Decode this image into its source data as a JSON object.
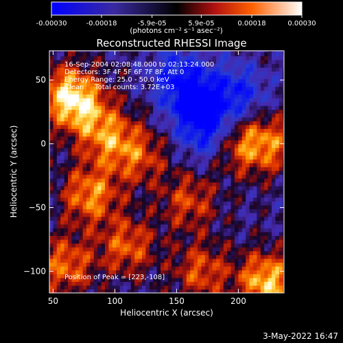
{
  "colorbar": {
    "tick_labels": [
      "-0.00030",
      "-0.00018",
      "-5.9e-05",
      "5.9e-05",
      "0.00018",
      "0.00030"
    ],
    "tick_values": [
      -0.0003,
      -0.00018,
      -5.9e-05,
      5.9e-05,
      0.00018,
      0.0003
    ],
    "range": [
      -0.0003,
      0.0003
    ],
    "unit_label": "(photons cm⁻² s⁻¹ asec⁻²)"
  },
  "chart_data": {
    "type": "heatmap",
    "title": "Reconstructed RHESSI Image",
    "xlabel": "Heliocentric X (arcsec)",
    "ylabel": "Heliocentric Y (arcsec)",
    "xlim": [
      47,
      237
    ],
    "ylim": [
      -117,
      73
    ],
    "x_ticks": [
      50,
      100,
      150,
      200
    ],
    "y_ticks": [
      -100,
      -50,
      0,
      50
    ],
    "annotations": [
      "16-Sep-2004 02:08:48.000 to 02:13:24.000",
      "Detectors: 3F 4F 5F 6F 7F 8F, Att 0",
      "Energy Range: 25.0 - 50.0 keV",
      "Clean     Total counts: 3.72E+03"
    ],
    "peak_label": "Position of Peak = [223,-108]",
    "peak_position": [
      223,
      -108
    ],
    "bright_regions": [
      {
        "x": 72,
        "y": 30,
        "level": 0.85
      },
      {
        "x": 58,
        "y": 42,
        "level": 0.6
      },
      {
        "x": 95,
        "y": 5,
        "level": 0.7
      },
      {
        "x": 80,
        "y": -40,
        "level": 0.8
      },
      {
        "x": 120,
        "y": -10,
        "level": 0.55
      },
      {
        "x": 200,
        "y": 0,
        "level": 0.6
      },
      {
        "x": 225,
        "y": 0,
        "level": 0.65
      },
      {
        "x": 160,
        "y": -45,
        "level": 0.55
      },
      {
        "x": 110,
        "y": -80,
        "level": 0.65
      },
      {
        "x": 170,
        "y": -100,
        "level": 0.6
      },
      {
        "x": 223,
        "y": -108,
        "level": 1.0
      },
      {
        "x": 60,
        "y": -95,
        "level": 0.7
      }
    ],
    "dark_regions": [
      {
        "x": 165,
        "y": 35,
        "level": -0.8
      },
      {
        "x": 175,
        "y": 10,
        "level": -0.7
      },
      {
        "x": 150,
        "y": 55,
        "level": -0.5
      },
      {
        "x": 200,
        "y": 40,
        "level": -0.6
      }
    ]
  },
  "footer": {
    "date": "3-May-2022 16:47"
  }
}
